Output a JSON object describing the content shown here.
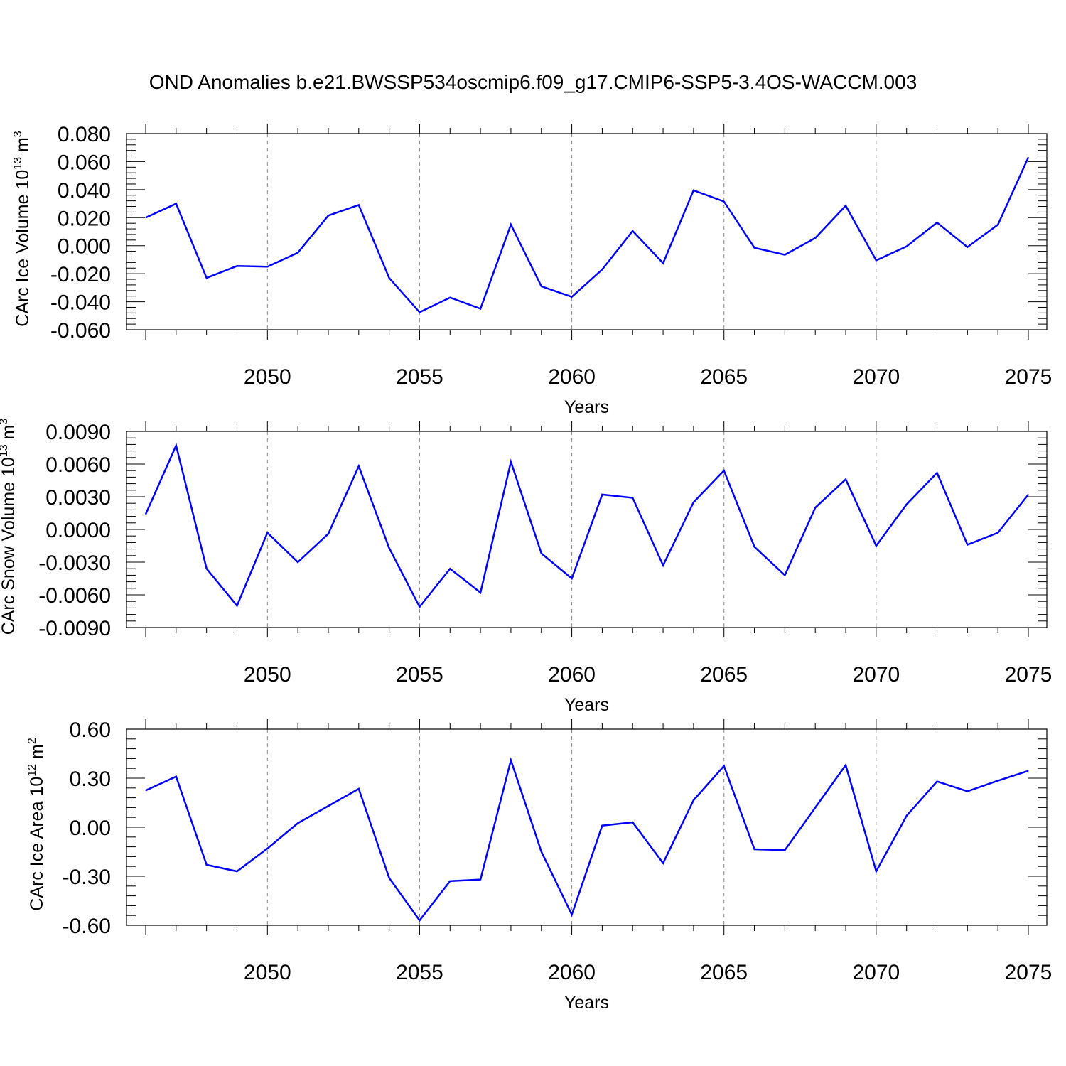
{
  "title": "OND Anomalies b.e21.BWSSP534oscmip6.f09_g17.CMIP6-SSP5-3.4OS-WACCM.003",
  "colors": {
    "line": "#0000ff",
    "axis": "#000000",
    "grid": "#888888"
  },
  "chart_data": [
    {
      "type": "line",
      "series_name": "ice-volume",
      "ylabel_main": "CArc Ice Volume 10",
      "ylabel_exp": "13",
      "ylabel_unit": " m",
      "ylabel_unit_exp": "3",
      "xlabel": "Years",
      "xlim": [
        2046,
        2075
      ],
      "ylim": [
        -0.06,
        0.08
      ],
      "x_ticks": [
        2050,
        2055,
        2060,
        2065,
        2070,
        2075
      ],
      "x_tick_labels": [
        "2050",
        "2055",
        "2060",
        "2065",
        "2070",
        "2075"
      ],
      "y_ticks": [
        -0.06,
        -0.04,
        -0.02,
        0.0,
        0.02,
        0.04,
        0.06,
        0.08
      ],
      "y_tick_labels": [
        "-0.060",
        "-0.040",
        "-0.020",
        "0.000",
        "0.020",
        "0.040",
        "0.060",
        "0.080"
      ],
      "x": [
        2046,
        2047,
        2048,
        2049,
        2050,
        2051,
        2052,
        2053,
        2054,
        2055,
        2056,
        2057,
        2058,
        2059,
        2060,
        2061,
        2062,
        2063,
        2064,
        2065,
        2066,
        2067,
        2068,
        2069,
        2070,
        2071,
        2072,
        2073,
        2074,
        2075
      ],
      "values": [
        0.02,
        0.03,
        -0.023,
        -0.0145,
        -0.015,
        -0.005,
        0.0215,
        0.029,
        -0.023,
        -0.0475,
        -0.037,
        -0.045,
        0.015,
        -0.029,
        -0.0365,
        -0.017,
        0.0105,
        -0.0125,
        0.0395,
        0.0315,
        -0.0015,
        -0.0065,
        0.0055,
        0.0285,
        -0.0105,
        -0.0005,
        0.0165,
        -0.001,
        0.015,
        0.063
      ]
    },
    {
      "type": "line",
      "series_name": "snow-volume",
      "ylabel_main": "CArc Snow Volume 10",
      "ylabel_exp": "13",
      "ylabel_unit": " m",
      "ylabel_unit_exp": "3",
      "xlabel": "Years",
      "xlim": [
        2046,
        2075
      ],
      "ylim": [
        -0.009,
        0.009
      ],
      "x_ticks": [
        2050,
        2055,
        2060,
        2065,
        2070,
        2075
      ],
      "x_tick_labels": [
        "2050",
        "2055",
        "2060",
        "2065",
        "2070",
        "2075"
      ],
      "y_ticks": [
        -0.009,
        -0.006,
        -0.003,
        0.0,
        0.003,
        0.006,
        0.009
      ],
      "y_tick_labels": [
        "-0.0090",
        "-0.0060",
        "-0.0030",
        "0.0000",
        "0.0030",
        "0.0060",
        "0.0090"
      ],
      "x": [
        2046,
        2047,
        2048,
        2049,
        2050,
        2051,
        2052,
        2053,
        2054,
        2055,
        2056,
        2057,
        2058,
        2059,
        2060,
        2061,
        2062,
        2063,
        2064,
        2065,
        2066,
        2067,
        2068,
        2069,
        2070,
        2071,
        2072,
        2073,
        2074,
        2075
      ],
      "values": [
        0.0014,
        0.0077,
        -0.0036,
        -0.007,
        -0.0003,
        -0.003,
        -0.0004,
        0.0058,
        -0.0017,
        -0.0071,
        -0.0036,
        -0.0058,
        0.0062,
        -0.0022,
        -0.0045,
        0.0032,
        0.0029,
        -0.0033,
        0.0025,
        0.0054,
        -0.0016,
        -0.0042,
        0.002,
        0.0046,
        -0.0015,
        0.0023,
        0.0052,
        -0.0014,
        -0.0003,
        0.0032
      ]
    },
    {
      "type": "line",
      "series_name": "ice-area",
      "ylabel_main": "CArc Ice Area 10",
      "ylabel_exp": "12",
      "ylabel_unit": " m",
      "ylabel_unit_exp": "2",
      "xlabel": "Years",
      "xlim": [
        2046,
        2075
      ],
      "ylim": [
        -0.6,
        0.6
      ],
      "x_ticks": [
        2050,
        2055,
        2060,
        2065,
        2070,
        2075
      ],
      "x_tick_labels": [
        "2050",
        "2055",
        "2060",
        "2065",
        "2070",
        "2075"
      ],
      "y_ticks": [
        -0.6,
        -0.3,
        0.0,
        0.3,
        0.6
      ],
      "y_tick_labels": [
        "-0.60",
        "-0.30",
        "0.00",
        "0.30",
        "0.60"
      ],
      "x": [
        2046,
        2047,
        2048,
        2049,
        2050,
        2051,
        2052,
        2053,
        2054,
        2055,
        2056,
        2057,
        2058,
        2059,
        2060,
        2061,
        2062,
        2063,
        2064,
        2065,
        2066,
        2067,
        2068,
        2069,
        2070,
        2071,
        2072,
        2073,
        2074,
        2075
      ],
      "values": [
        0.225,
        0.31,
        -0.23,
        -0.27,
        -0.13,
        0.025,
        0.13,
        0.235,
        -0.31,
        -0.57,
        -0.33,
        -0.32,
        0.41,
        -0.15,
        -0.535,
        0.01,
        0.03,
        -0.22,
        0.165,
        0.375,
        -0.135,
        -0.14,
        0.12,
        0.38,
        -0.27,
        0.07,
        0.28,
        0.22,
        0.285,
        0.345
      ]
    }
  ]
}
